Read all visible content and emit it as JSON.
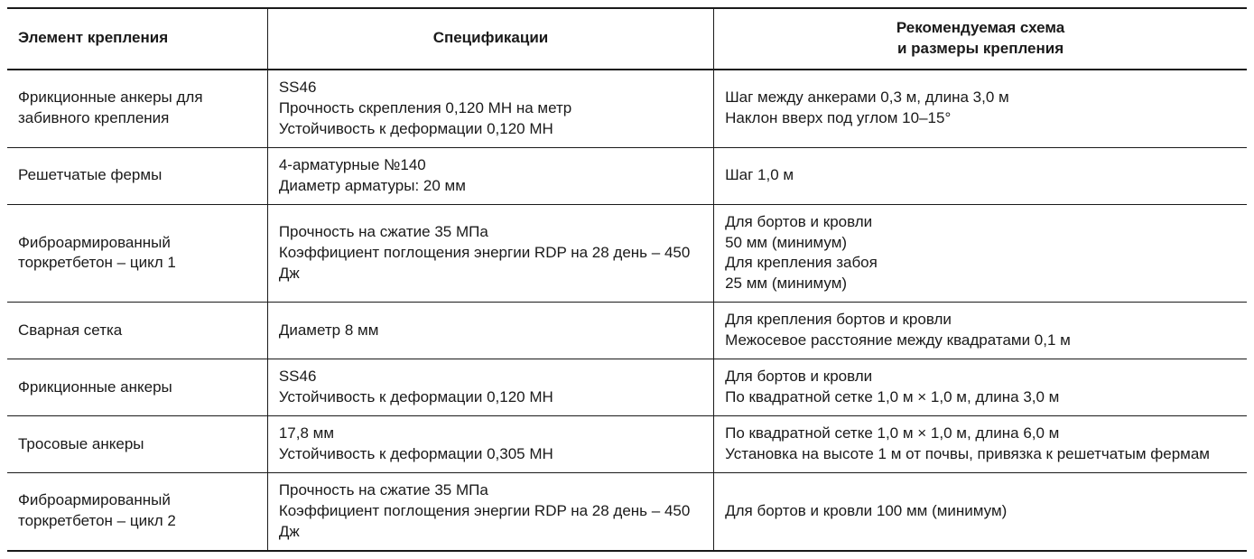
{
  "table": {
    "background_color": "#ffffff",
    "text_color": "#1a1a1a",
    "border_color": "#1a1a1a",
    "font_size_pt": 13,
    "header_font_weight": 700,
    "columns": [
      {
        "label": "Элемент крепления",
        "width_pct": 21,
        "align": "left"
      },
      {
        "label": "Спецификации",
        "width_pct": 36,
        "align": "center"
      },
      {
        "label": "Рекомендуемая схема\nи размеры крепления",
        "width_pct": 43,
        "align": "center"
      }
    ],
    "rows": [
      {
        "element": "Фрикционные анкеры для забивного крепления",
        "spec": "SS46\nПрочность скрепления 0,120 МН на метр\nУстойчивость к деформации 0,120 МН",
        "scheme": "Шаг между анкерами 0,3 м, длина 3,0 м\nНаклон вверх под углом 10–15°"
      },
      {
        "element": "Решетчатые фермы",
        "spec": "4-арматурные №140\nДиаметр арматуры: 20 мм",
        "scheme": "Шаг 1,0 м"
      },
      {
        "element": "Фиброармированный торкретбетон – цикл 1",
        "spec": "Прочность на сжатие 35 МПа\nКоэффициент поглощения энергии RDP на 28 день – 450 Дж",
        "scheme": "Для бортов и кровли\n50 мм (минимум)\nДля крепления забоя\n25 мм (минимум)"
      },
      {
        "element": "Сварная сетка",
        "spec": "Диаметр 8 мм",
        "scheme": "Для крепления бортов и кровли\nМежосевое расстояние между квадратами 0,1 м"
      },
      {
        "element": "Фрикционные анкеры",
        "spec": "SS46\nУстойчивость к деформации 0,120 МН",
        "scheme": "Для бортов и кровли\nПо квадратной сетке 1,0 м × 1,0 м, длина 3,0 м"
      },
      {
        "element": "Тросовые анкеры",
        "spec": "17,8 мм\nУстойчивость к деформации 0,305 МН",
        "scheme": "По квадратной сетке 1,0 м × 1,0 м, длина 6,0 м\nУстановка на высоте 1 м от почвы, привязка к решетчатым фермам"
      },
      {
        "element": "Фиброармированный торкретбетон – цикл 2",
        "spec": "Прочность на сжатие 35 МПа\nКоэффициент поглощения энергии RDP на 28 день – 450 Дж",
        "scheme": "Для бортов и кровли 100 мм (минимум)"
      }
    ]
  }
}
